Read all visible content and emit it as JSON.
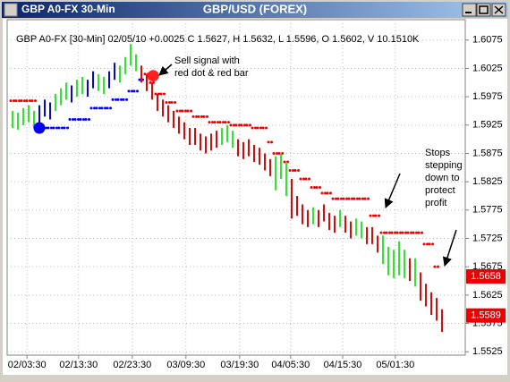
{
  "window": {
    "title": "GBP A0-FX 30-Min",
    "chart_title": "GBP/USD (FOREX)"
  },
  "chart_data": {
    "type": "price-bars",
    "subtitle": "GBP A0-FX [30-Min] 02/05/10 +0.0025 C 1.5627, H 1.5632, L 1.5596, O 1.5602, V 10.1510K",
    "palette": [
      "#0000ff",
      "#22ee22",
      "#ee0000"
    ],
    "x": [
      1,
      2,
      3,
      4,
      5,
      6,
      7,
      8,
      9,
      10,
      11,
      12,
      13,
      14,
      15,
      16,
      17,
      18,
      19,
      20,
      21,
      22,
      23,
      24,
      25,
      26,
      27,
      28,
      29,
      30,
      31,
      32,
      33,
      34,
      35,
      36,
      37,
      38,
      39,
      40,
      41,
      42,
      43,
      44,
      45,
      46,
      47,
      48,
      49,
      50,
      51,
      52,
      53,
      54,
      55,
      56,
      57,
      58,
      59,
      60,
      61,
      62,
      63,
      64,
      65,
      66,
      67,
      68,
      69,
      70,
      71,
      72,
      73,
      74,
      75,
      76,
      77,
      78,
      79,
      80,
      81
    ],
    "high": [
      1.595,
      1.5947,
      1.5955,
      1.596,
      1.595,
      1.596,
      1.597,
      1.5965,
      1.598,
      1.599,
      1.6,
      1.5995,
      1.6005,
      1.601,
      1.6005,
      1.602,
      1.6015,
      1.601,
      1.602,
      1.6035,
      1.603,
      1.6045,
      1.6068,
      1.605,
      1.603,
      1.6015,
      1.6,
      1.598,
      1.597,
      1.596,
      1.595,
      1.594,
      1.593,
      1.592,
      1.592,
      1.591,
      1.5905,
      1.591,
      1.5915,
      1.592,
      1.5925,
      1.5915,
      1.59,
      1.5895,
      1.59,
      1.589,
      1.5885,
      1.5875,
      1.5865,
      1.587,
      1.5875,
      1.586,
      1.583,
      1.58,
      1.5785,
      1.5775,
      1.578,
      1.5775,
      1.5785,
      1.577,
      1.5765,
      1.5775,
      1.5765,
      1.5755,
      1.576,
      1.5755,
      1.5745,
      1.5745,
      1.573,
      1.573,
      1.571,
      1.5705,
      1.572,
      1.5705,
      1.569,
      1.569,
      1.5665,
      1.5645,
      1.563,
      1.562,
      1.56
    ],
    "low": [
      1.592,
      1.5917,
      1.5925,
      1.593,
      1.592,
      1.593,
      1.594,
      1.5935,
      1.595,
      1.596,
      1.597,
      1.5965,
      1.5975,
      1.598,
      1.5975,
      1.599,
      1.5985,
      1.598,
      1.599,
      1.6005,
      1.6,
      1.6015,
      1.603,
      1.602,
      1.6,
      1.5985,
      1.597,
      1.595,
      1.594,
      1.593,
      1.592,
      1.591,
      1.59,
      1.589,
      1.589,
      1.588,
      1.5875,
      1.588,
      1.5885,
      1.589,
      1.5895,
      1.5885,
      1.587,
      1.5865,
      1.587,
      1.586,
      1.5855,
      1.5845,
      1.5835,
      1.581,
      1.583,
      1.58,
      1.576,
      1.5765,
      1.575,
      1.5745,
      1.575,
      1.5745,
      1.5755,
      1.574,
      1.5735,
      1.5745,
      1.5735,
      1.5725,
      1.573,
      1.5725,
      1.5715,
      1.5715,
      1.57,
      1.568,
      1.566,
      1.5655,
      1.566,
      1.5655,
      1.565,
      1.564,
      1.5615,
      1.5605,
      1.559,
      1.558,
      1.556
    ],
    "bar_color_index": [
      1,
      1,
      1,
      1,
      1,
      0,
      0,
      0,
      1,
      1,
      1,
      0,
      1,
      1,
      0,
      0,
      1,
      1,
      0,
      0,
      1,
      1,
      1,
      1,
      2,
      2,
      2,
      2,
      2,
      2,
      2,
      2,
      2,
      2,
      2,
      2,
      2,
      2,
      2,
      1,
      1,
      1,
      2,
      2,
      2,
      2,
      2,
      2,
      2,
      1,
      1,
      1,
      2,
      2,
      2,
      2,
      1,
      2,
      2,
      2,
      2,
      1,
      2,
      2,
      1,
      1,
      2,
      2,
      2,
      1,
      1,
      1,
      1,
      1,
      2,
      1,
      2,
      2,
      2,
      2,
      2
    ],
    "stops": [
      1.5968,
      1.5968,
      1.5968,
      1.5968,
      1.5968,
      1.592,
      1.592,
      1.592,
      1.592,
      1.592,
      1.592,
      1.5935,
      1.5935,
      1.5935,
      1.5935,
      1.5955,
      1.5955,
      1.5955,
      1.5955,
      1.597,
      1.597,
      1.597,
      1.5985,
      1.5985,
      1.6005,
      1.6015,
      1.6,
      1.598,
      1.598,
      1.5965,
      1.5965,
      1.595,
      1.595,
      1.595,
      1.594,
      1.594,
      1.594,
      1.593,
      1.593,
      1.593,
      1.593,
      1.5925,
      1.5925,
      1.5925,
      1.5925,
      1.592,
      1.592,
      1.592,
      1.5895,
      1.5875,
      1.5875,
      1.586,
      1.5845,
      1.5845,
      1.583,
      1.583,
      1.5815,
      1.5815,
      1.5805,
      1.5805,
      1.5795,
      1.5795,
      1.5795,
      1.5795,
      1.5795,
      1.5795,
      1.5795,
      1.5765,
      1.5765,
      1.5735,
      1.5735,
      1.5735,
      1.5735,
      1.5735,
      1.5735,
      1.5735,
      1.5735,
      1.5715,
      1.5715,
      1.5675,
      null
    ],
    "stop_color_index": [
      2,
      2,
      2,
      2,
      2,
      0,
      0,
      0,
      0,
      0,
      0,
      0,
      0,
      0,
      0,
      0,
      0,
      0,
      0,
      0,
      0,
      0,
      0,
      0,
      0,
      2,
      2,
      2,
      2,
      2,
      2,
      2,
      2,
      2,
      2,
      2,
      2,
      2,
      2,
      2,
      2,
      2,
      2,
      2,
      2,
      2,
      2,
      2,
      2,
      2,
      2,
      2,
      2,
      2,
      2,
      2,
      2,
      2,
      2,
      2,
      2,
      2,
      2,
      2,
      2,
      2,
      2,
      2,
      2,
      2,
      2,
      2,
      2,
      2,
      2,
      2,
      2,
      2,
      2,
      2,
      2
    ],
    "signals": [
      {
        "x": 6,
        "value": 1.592,
        "color": "#0000ff"
      },
      {
        "x": 27.2,
        "value": 1.6012,
        "color": "#ff2020"
      }
    ],
    "price_labels": [
      {
        "value": 1.5658,
        "color": "#ee0000"
      },
      {
        "value": 1.5589,
        "color": "#ee0000"
      }
    ],
    "xlim": [
      0,
      85.33
    ],
    "xticks": [
      {
        "value": 3.7,
        "label": "02/03:30"
      },
      {
        "value": 13.3,
        "label": "02/13:30"
      },
      {
        "value": 23.3,
        "label": "02/23:30"
      },
      {
        "value": 33.3,
        "label": "03/09:30"
      },
      {
        "value": 43.3,
        "label": "03/19:30"
      },
      {
        "value": 52.8,
        "label": "04/05:30"
      },
      {
        "value": 62.5,
        "label": "04/15:30"
      },
      {
        "value": 72.3,
        "label": "05/01:30"
      }
    ],
    "ylim": [
      1.5519,
      1.6111
    ],
    "yticks": [
      1.6075,
      1.6025,
      1.5975,
      1.5925,
      1.5875,
      1.5825,
      1.5775,
      1.5725,
      1.5675,
      1.5625,
      1.5575,
      1.5525
    ],
    "grid": true,
    "annotations": [
      {
        "lines": [
          "Sell signal with",
          "red dot & red bar"
        ]
      },
      {
        "lines": [
          "Stops",
          "stepping",
          "down to",
          "protect",
          "profit"
        ]
      }
    ]
  }
}
